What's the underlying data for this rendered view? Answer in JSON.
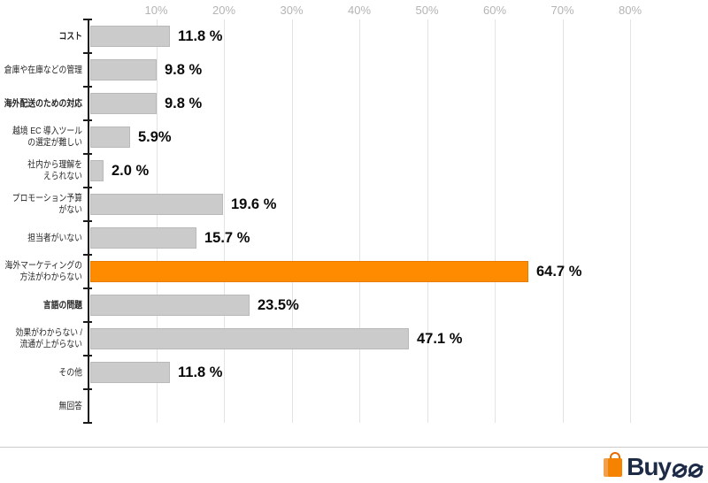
{
  "chart_data": {
    "type": "bar",
    "orientation": "horizontal",
    "title": "",
    "xlabel": "",
    "ylabel": "",
    "unit": "%",
    "x_axis": {
      "position": "top",
      "range": [
        0,
        86
      ],
      "grid": true,
      "tick_values": [
        10,
        20,
        30,
        40,
        50,
        60,
        70,
        80
      ],
      "tick_labels": [
        "10%",
        "20%",
        "30%",
        "40%",
        "50%",
        "60%",
        "70%",
        "80%"
      ]
    },
    "bar_color": "#CBCBCB",
    "highlight_color": "#FF8C00",
    "rows": [
      {
        "label_lines": [
          "コスト"
        ],
        "bold": true,
        "value": 11.8,
        "value_label": "11.8 %",
        "highlight": false
      },
      {
        "label_lines": [
          "倉庫や在庫などの管理"
        ],
        "bold": false,
        "value": 9.8,
        "value_label": "9.8 %",
        "highlight": false
      },
      {
        "label_lines": [
          "海外配送のための対応"
        ],
        "bold": true,
        "value": 9.8,
        "value_label": "9.8 %",
        "highlight": false
      },
      {
        "label_lines": [
          "越境 EC 導入ツール",
          "の選定が難しい"
        ],
        "bold": false,
        "value": 5.9,
        "value_label": "5.9%",
        "highlight": false
      },
      {
        "label_lines": [
          "社内から理解を",
          "えられない"
        ],
        "bold": false,
        "value": 2.0,
        "value_label": "2.0 %",
        "highlight": false
      },
      {
        "label_lines": [
          "プロモーション予算",
          "がない"
        ],
        "bold": false,
        "value": 19.6,
        "value_label": "19.6 %",
        "highlight": false
      },
      {
        "label_lines": [
          "担当者がいない"
        ],
        "bold": false,
        "value": 15.7,
        "value_label": "15.7 %",
        "highlight": false
      },
      {
        "label_lines": [
          "海外マーケティングの",
          "方法がわからない"
        ],
        "bold": false,
        "value": 64.7,
        "value_label": "64.7 %",
        "highlight": true
      },
      {
        "label_lines": [
          "言語の問題"
        ],
        "bold": true,
        "value": 23.5,
        "value_label": "23.5%",
        "highlight": false
      },
      {
        "label_lines": [
          "効果がわからない /",
          "流通が上がらない"
        ],
        "bold": false,
        "value": 47.1,
        "value_label": "47.1 %",
        "highlight": false
      },
      {
        "label_lines": [
          "その他"
        ],
        "bold": false,
        "value": 11.8,
        "value_label": "11.8 %",
        "highlight": false
      },
      {
        "label_lines": [
          "無回答"
        ],
        "bold": false,
        "value": 0,
        "value_label": "",
        "highlight": false
      }
    ]
  },
  "logo": {
    "brand": "Buyee",
    "brand_prefix": "Buy",
    "icon": "shopping-bag-icon",
    "color_orange": "#F68300",
    "color_navy": "#1E2B47"
  }
}
